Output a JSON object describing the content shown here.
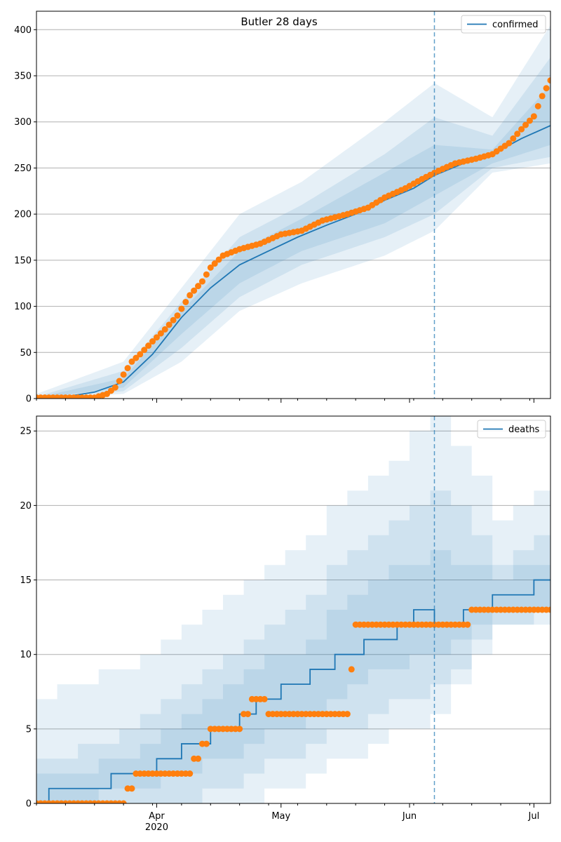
{
  "chart_data": [
    {
      "type": "line",
      "title": "Butler 28 days",
      "legend": {
        "label": "confirmed",
        "placement": "top-right"
      },
      "ylim": [
        0,
        420
      ],
      "yticks": [
        0,
        50,
        100,
        150,
        200,
        250,
        300,
        350,
        400
      ],
      "xlim": [
        "2020-03-03",
        "2020-07-05"
      ],
      "xticks": [
        {
          "date": "2020-04-01",
          "label": "Apr",
          "sublabel": "2020"
        },
        {
          "date": "2020-05-01",
          "label": "May",
          "sublabel": ""
        },
        {
          "date": "2020-06-01",
          "label": "Jun",
          "sublabel": ""
        },
        {
          "date": "2020-07-01",
          "label": "Jul",
          "sublabel": ""
        }
      ],
      "grid": "y",
      "forecast_start": "2020-06-07",
      "series": [
        {
          "name": "confirmed",
          "kind": "median-line",
          "points": [
            [
              "2020-03-03",
              0
            ],
            [
              "2020-03-10",
              2
            ],
            [
              "2020-03-17",
              7
            ],
            [
              "2020-03-24",
              18
            ],
            [
              "2020-03-31",
              48
            ],
            [
              "2020-04-07",
              88
            ],
            [
              "2020-04-14",
              120
            ],
            [
              "2020-04-21",
              145
            ],
            [
              "2020-04-28",
              160
            ],
            [
              "2020-05-05",
              175
            ],
            [
              "2020-05-12",
              188
            ],
            [
              "2020-05-19",
              200
            ],
            [
              "2020-05-26",
              215
            ],
            [
              "2020-06-02",
              228
            ],
            [
              "2020-06-07",
              242
            ],
            [
              "2020-06-14",
              255
            ],
            [
              "2020-06-21",
              265
            ],
            [
              "2020-06-28",
              282
            ],
            [
              "2020-07-05",
              296
            ]
          ]
        },
        {
          "name": "observed",
          "kind": "points",
          "points": [
            [
              "2020-03-03",
              1
            ],
            [
              "2020-03-10",
              1
            ],
            [
              "2020-03-17",
              1
            ],
            [
              "2020-03-20",
              5
            ],
            [
              "2020-03-22",
              12
            ],
            [
              "2020-03-24",
              26
            ],
            [
              "2020-03-26",
              40
            ],
            [
              "2020-03-28",
              48
            ],
            [
              "2020-03-31",
              62
            ],
            [
              "2020-04-03",
              75
            ],
            [
              "2020-04-06",
              90
            ],
            [
              "2020-04-09",
              112
            ],
            [
              "2020-04-12",
              127
            ],
            [
              "2020-04-14",
              142
            ],
            [
              "2020-04-17",
              155
            ],
            [
              "2020-04-21",
              162
            ],
            [
              "2020-04-26",
              168
            ],
            [
              "2020-05-01",
              178
            ],
            [
              "2020-05-06",
              182
            ],
            [
              "2020-05-11",
              193
            ],
            [
              "2020-05-17",
              200
            ],
            [
              "2020-05-22",
              207
            ],
            [
              "2020-05-26",
              218
            ],
            [
              "2020-05-31",
              228
            ],
            [
              "2020-06-04",
              238
            ],
            [
              "2020-06-08",
              247
            ],
            [
              "2020-06-12",
              255
            ],
            [
              "2020-06-17",
              260
            ],
            [
              "2020-06-21",
              265
            ],
            [
              "2020-06-25",
              277
            ],
            [
              "2020-06-28",
              292
            ],
            [
              "2020-07-01",
              306
            ],
            [
              "2020-07-03",
              328
            ],
            [
              "2020-07-05",
              345
            ]
          ]
        }
      ],
      "bands": [
        {
          "name": "outer",
          "upper": [
            [
              "2020-03-03",
              5
            ],
            [
              "2020-03-24",
              40
            ],
            [
              "2020-04-07",
              120
            ],
            [
              "2020-04-21",
              200
            ],
            [
              "2020-05-06",
              235
            ],
            [
              "2020-05-26",
              300
            ],
            [
              "2020-06-07",
              342
            ],
            [
              "2020-06-21",
              305
            ],
            [
              "2020-07-05",
              405
            ]
          ],
          "lower": [
            [
              "2020-03-03",
              0
            ],
            [
              "2020-03-24",
              5
            ],
            [
              "2020-04-07",
              40
            ],
            [
              "2020-04-21",
              95
            ],
            [
              "2020-05-06",
              125
            ],
            [
              "2020-05-26",
              155
            ],
            [
              "2020-06-07",
              182
            ],
            [
              "2020-06-21",
              245
            ],
            [
              "2020-07-05",
              255
            ]
          ]
        },
        {
          "name": "middle",
          "upper": [
            [
              "2020-03-03",
              2
            ],
            [
              "2020-03-24",
              30
            ],
            [
              "2020-04-07",
              105
            ],
            [
              "2020-04-21",
              175
            ],
            [
              "2020-05-06",
              210
            ],
            [
              "2020-05-26",
              265
            ],
            [
              "2020-06-07",
              305
            ],
            [
              "2020-06-21",
              285
            ],
            [
              "2020-07-05",
              370
            ]
          ],
          "lower": [
            [
              "2020-03-03",
              0
            ],
            [
              "2020-03-24",
              8
            ],
            [
              "2020-04-07",
              55
            ],
            [
              "2020-04-21",
              110
            ],
            [
              "2020-05-06",
              145
            ],
            [
              "2020-05-26",
              175
            ],
            [
              "2020-06-07",
              200
            ],
            [
              "2020-06-21",
              250
            ],
            [
              "2020-07-05",
              262
            ]
          ]
        },
        {
          "name": "inner",
          "upper": [
            [
              "2020-03-03",
              1
            ],
            [
              "2020-03-24",
              22
            ],
            [
              "2020-04-07",
              95
            ],
            [
              "2020-04-21",
              160
            ],
            [
              "2020-05-06",
              195
            ],
            [
              "2020-05-26",
              245
            ],
            [
              "2020-06-07",
              275
            ],
            [
              "2020-06-21",
              270
            ],
            [
              "2020-07-05",
              340
            ]
          ],
          "lower": [
            [
              "2020-03-03",
              0
            ],
            [
              "2020-03-24",
              12
            ],
            [
              "2020-04-07",
              70
            ],
            [
              "2020-04-21",
              125
            ],
            [
              "2020-05-06",
              160
            ],
            [
              "2020-05-26",
              190
            ],
            [
              "2020-06-07",
              220
            ],
            [
              "2020-06-21",
              255
            ],
            [
              "2020-07-05",
              275
            ]
          ]
        }
      ],
      "colors": {
        "line": "#1f77b4",
        "points": "#ff7f0e",
        "band": "#1f77b4",
        "vline": "#1f77b4",
        "grid": "#b0b0b0"
      }
    },
    {
      "type": "line",
      "title": "",
      "legend": {
        "label": "deaths",
        "placement": "top-right"
      },
      "ylim": [
        0,
        26
      ],
      "yticks": [
        0,
        5,
        10,
        15,
        20,
        25
      ],
      "xlim": [
        "2020-03-03",
        "2020-07-05"
      ],
      "xticks": [
        {
          "date": "2020-04-01",
          "label": "Apr",
          "sublabel": "2020"
        },
        {
          "date": "2020-05-01",
          "label": "May",
          "sublabel": ""
        },
        {
          "date": "2020-06-01",
          "label": "Jun",
          "sublabel": ""
        },
        {
          "date": "2020-07-01",
          "label": "Jul",
          "sublabel": ""
        }
      ],
      "grid": "y",
      "forecast_start": "2020-06-07",
      "series": [
        {
          "name": "deaths",
          "kind": "step",
          "points": [
            [
              "2020-03-03",
              0
            ],
            [
              "2020-03-06",
              1
            ],
            [
              "2020-03-21",
              2
            ],
            [
              "2020-04-01",
              3
            ],
            [
              "2020-04-07",
              4
            ],
            [
              "2020-04-14",
              5
            ],
            [
              "2020-04-21",
              6
            ],
            [
              "2020-04-25",
              7
            ],
            [
              "2020-05-01",
              8
            ],
            [
              "2020-05-08",
              9
            ],
            [
              "2020-05-14",
              10
            ],
            [
              "2020-05-21",
              11
            ],
            [
              "2020-05-29",
              12
            ],
            [
              "2020-06-02",
              13
            ],
            [
              "2020-06-07",
              12
            ],
            [
              "2020-06-14",
              13
            ],
            [
              "2020-06-21",
              14
            ],
            [
              "2020-07-01",
              15
            ],
            [
              "2020-07-05",
              15
            ]
          ]
        },
        {
          "name": "observed",
          "kind": "points",
          "points": [
            [
              "2020-03-03",
              0
            ],
            [
              "2020-03-24",
              0
            ],
            [
              "2020-03-26",
              1
            ],
            [
              "2020-03-28",
              2
            ],
            [
              "2020-04-09",
              2
            ],
            [
              "2020-04-11",
              3
            ],
            [
              "2020-04-13",
              4
            ],
            [
              "2020-04-15",
              5
            ],
            [
              "2020-04-21",
              5
            ],
            [
              "2020-04-23",
              6
            ],
            [
              "2020-04-24",
              7
            ],
            [
              "2020-05-01",
              6
            ],
            [
              "2020-05-17",
              6
            ],
            [
              "2020-05-19",
              12
            ],
            [
              "2020-06-14",
              12
            ],
            [
              "2020-06-17",
              13
            ],
            [
              "2020-07-05",
              13
            ]
          ]
        }
      ],
      "bands": [
        {
          "name": "outer",
          "upper": [
            [
              "2020-03-03",
              7
            ],
            [
              "2020-03-10",
              8
            ],
            [
              "2020-03-24",
              9
            ],
            [
              "2020-04-07",
              12
            ],
            [
              "2020-04-21",
              15
            ],
            [
              "2020-05-06",
              18
            ],
            [
              "2020-05-21",
              22
            ],
            [
              "2020-06-07",
              26
            ],
            [
              "2020-06-21",
              19
            ],
            [
              "2020-07-05",
              22
            ]
          ],
          "lower": [
            [
              "2020-03-03",
              0
            ],
            [
              "2020-04-21",
              0
            ],
            [
              "2020-05-06",
              2
            ],
            [
              "2020-05-21",
              4
            ],
            [
              "2020-06-07",
              6
            ],
            [
              "2020-06-21",
              12
            ],
            [
              "2020-07-05",
              12
            ]
          ]
        },
        {
          "name": "middle",
          "upper": [
            [
              "2020-03-03",
              3
            ],
            [
              "2020-03-24",
              5
            ],
            [
              "2020-04-07",
              8
            ],
            [
              "2020-04-21",
              11
            ],
            [
              "2020-05-06",
              14
            ],
            [
              "2020-05-21",
              18
            ],
            [
              "2020-06-07",
              21
            ],
            [
              "2020-06-21",
              16
            ],
            [
              "2020-07-05",
              19
            ]
          ],
          "lower": [
            [
              "2020-03-03",
              0
            ],
            [
              "2020-04-07",
              0
            ],
            [
              "2020-04-21",
              2
            ],
            [
              "2020-05-06",
              4
            ],
            [
              "2020-05-21",
              6
            ],
            [
              "2020-06-07",
              8
            ],
            [
              "2020-06-21",
              12
            ],
            [
              "2020-07-05",
              13
            ]
          ]
        },
        {
          "name": "inner",
          "upper": [
            [
              "2020-03-03",
              2
            ],
            [
              "2020-03-24",
              3
            ],
            [
              "2020-04-07",
              6
            ],
            [
              "2020-04-21",
              9
            ],
            [
              "2020-05-06",
              11
            ],
            [
              "2020-05-21",
              15
            ],
            [
              "2020-06-07",
              17
            ],
            [
              "2020-06-21",
              15
            ],
            [
              "2020-07-05",
              17
            ]
          ],
          "lower": [
            [
              "2020-03-03",
              0
            ],
            [
              "2020-03-24",
              1
            ],
            [
              "2020-04-07",
              2
            ],
            [
              "2020-04-21",
              4
            ],
            [
              "2020-05-06",
              6
            ],
            [
              "2020-05-21",
              9
            ],
            [
              "2020-06-07",
              10
            ],
            [
              "2020-06-21",
              13
            ],
            [
              "2020-07-05",
              13
            ]
          ]
        }
      ],
      "colors": {
        "line": "#1f77b4",
        "points": "#ff7f0e",
        "band": "#1f77b4",
        "vline": "#1f77b4",
        "grid": "#b0b0b0"
      }
    }
  ]
}
